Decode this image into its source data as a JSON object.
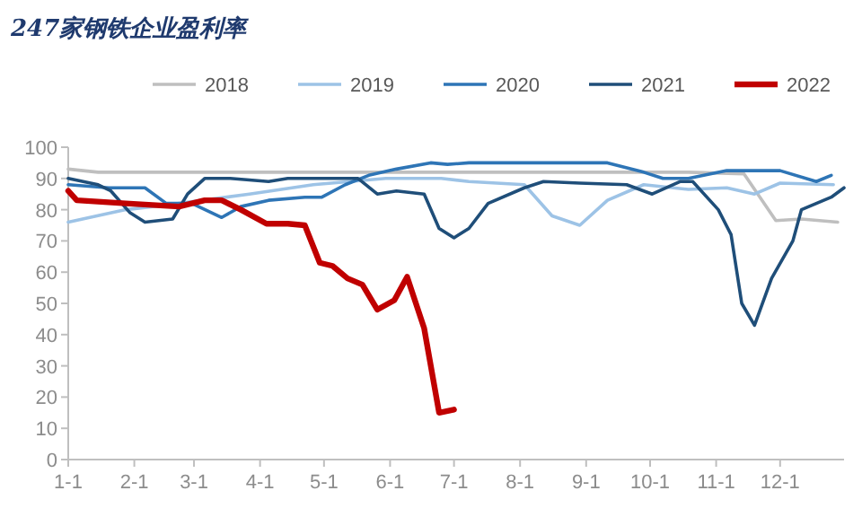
{
  "chart_data": {
    "type": "line",
    "title": "247家钢铁企业盈利率",
    "xlim": [
      "--01-01",
      "--12-31"
    ],
    "xticks": [
      {
        "value": "--01-01",
        "label": "1-1"
      },
      {
        "value": "--02-01",
        "label": "2-1"
      },
      {
        "value": "--03-01",
        "label": "3-1"
      },
      {
        "value": "--04-01",
        "label": "4-1"
      },
      {
        "value": "--05-01",
        "label": "5-1"
      },
      {
        "value": "--06-01",
        "label": "6-1"
      },
      {
        "value": "--07-01",
        "label": "7-1"
      },
      {
        "value": "--08-01",
        "label": "8-1"
      },
      {
        "value": "--09-01",
        "label": "9-1"
      },
      {
        "value": "--10-01",
        "label": "10-1"
      },
      {
        "value": "--11-01",
        "label": "11-1"
      },
      {
        "value": "--12-01",
        "label": "12-1"
      }
    ],
    "ylim": [
      0,
      100
    ],
    "yticks": [
      0,
      10,
      20,
      30,
      40,
      50,
      60,
      70,
      80,
      90,
      100
    ],
    "grid": false,
    "legend": "top",
    "marker": "none",
    "line_style": "solid",
    "series": [
      {
        "name": "2018",
        "color": "#bfbfbf",
        "x": [
          "--01-01",
          "--01-15",
          "--02-16",
          "--04-05",
          "--05-17",
          "--06-28",
          "--08-03",
          "--09-11",
          "--10-19",
          "--11-14",
          "--11-29",
          "--12-11",
          "--12-28"
        ],
        "values": [
          93,
          92,
          92,
          92,
          92,
          92,
          92,
          92,
          92,
          91.5,
          76.5,
          77,
          76
        ]
      },
      {
        "name": "2019",
        "color": "#9dc3e6",
        "x": [
          "--01-01",
          "--01-28",
          "--02-22",
          "--03-27",
          "--04-26",
          "--05-30",
          "--06-25",
          "--07-08",
          "--08-03",
          "--08-16",
          "--08-29",
          "--09-11",
          "--09-28",
          "--10-19",
          "--11-06",
          "--11-19",
          "--12-01",
          "--12-26"
        ],
        "values": [
          76,
          80,
          82,
          85,
          88,
          90,
          90,
          89,
          88,
          78,
          75,
          83,
          88,
          86.5,
          87,
          85,
          88.5,
          88
        ]
      },
      {
        "name": "2020",
        "color": "#2e75b6",
        "x": [
          "--01-01",
          "--01-20",
          "--02-06",
          "--02-16",
          "--02-28",
          "--03-14",
          "--03-23",
          "--04-05",
          "--04-22",
          "--04-30",
          "--05-11",
          "--05-22",
          "--06-04",
          "--06-20",
          "--06-28",
          "--07-08",
          "--08-12",
          "--09-11",
          "--09-28",
          "--10-07",
          "--10-19",
          "--11-06",
          "--12-01",
          "--12-18",
          "--12-25"
        ],
        "values": [
          88,
          87,
          87,
          82,
          82,
          77.5,
          81,
          83,
          84,
          84,
          88,
          91,
          93,
          95,
          94.5,
          95,
          95,
          95,
          92,
          90,
          90,
          92.5,
          92.5,
          89,
          91
        ]
      },
      {
        "name": "2021",
        "color": "#1f4e79",
        "x": [
          "--01-01",
          "--01-15",
          "--01-21",
          "--01-30",
          "--02-06",
          "--02-19",
          "--02-26",
          "--03-06",
          "--03-18",
          "--04-05",
          "--04-14",
          "--05-13",
          "--05-17",
          "--05-26",
          "--06-04",
          "--06-17",
          "--06-24",
          "--07-01",
          "--07-08",
          "--07-17",
          "--08-03",
          "--08-12",
          "--08-29",
          "--09-20",
          "--10-02",
          "--10-15",
          "--10-21",
          "--11-02",
          "--11-08",
          "--11-13",
          "--11-19",
          "--11-27",
          "--12-07",
          "--12-11",
          "--12-18",
          "--12-25",
          "--12-31"
        ],
        "values": [
          90,
          88,
          86,
          79,
          76,
          77,
          85,
          90,
          90,
          89,
          90,
          90,
          90,
          85,
          86,
          85,
          74,
          71,
          74,
          82,
          87,
          89,
          88.5,
          88,
          85,
          89,
          89,
          80,
          72,
          50,
          43,
          58,
          70,
          80,
          82,
          84,
          87
        ]
      },
      {
        "name": "2022",
        "color": "#c00000",
        "x": [
          "--01-01",
          "--01-05",
          "--01-28",
          "--02-22",
          "--03-06",
          "--03-14",
          "--03-23",
          "--04-04",
          "--04-14",
          "--04-22",
          "--04-29",
          "--05-05",
          "--05-12",
          "--05-19",
          "--05-26",
          "--06-03",
          "--06-09",
          "--06-17",
          "--06-24",
          "--07-01"
        ],
        "values": [
          86,
          83,
          82,
          81,
          83,
          83,
          80,
          75.5,
          75.5,
          75,
          63,
          62,
          58,
          56,
          48,
          51,
          58.5,
          42,
          15,
          16
        ]
      }
    ]
  }
}
